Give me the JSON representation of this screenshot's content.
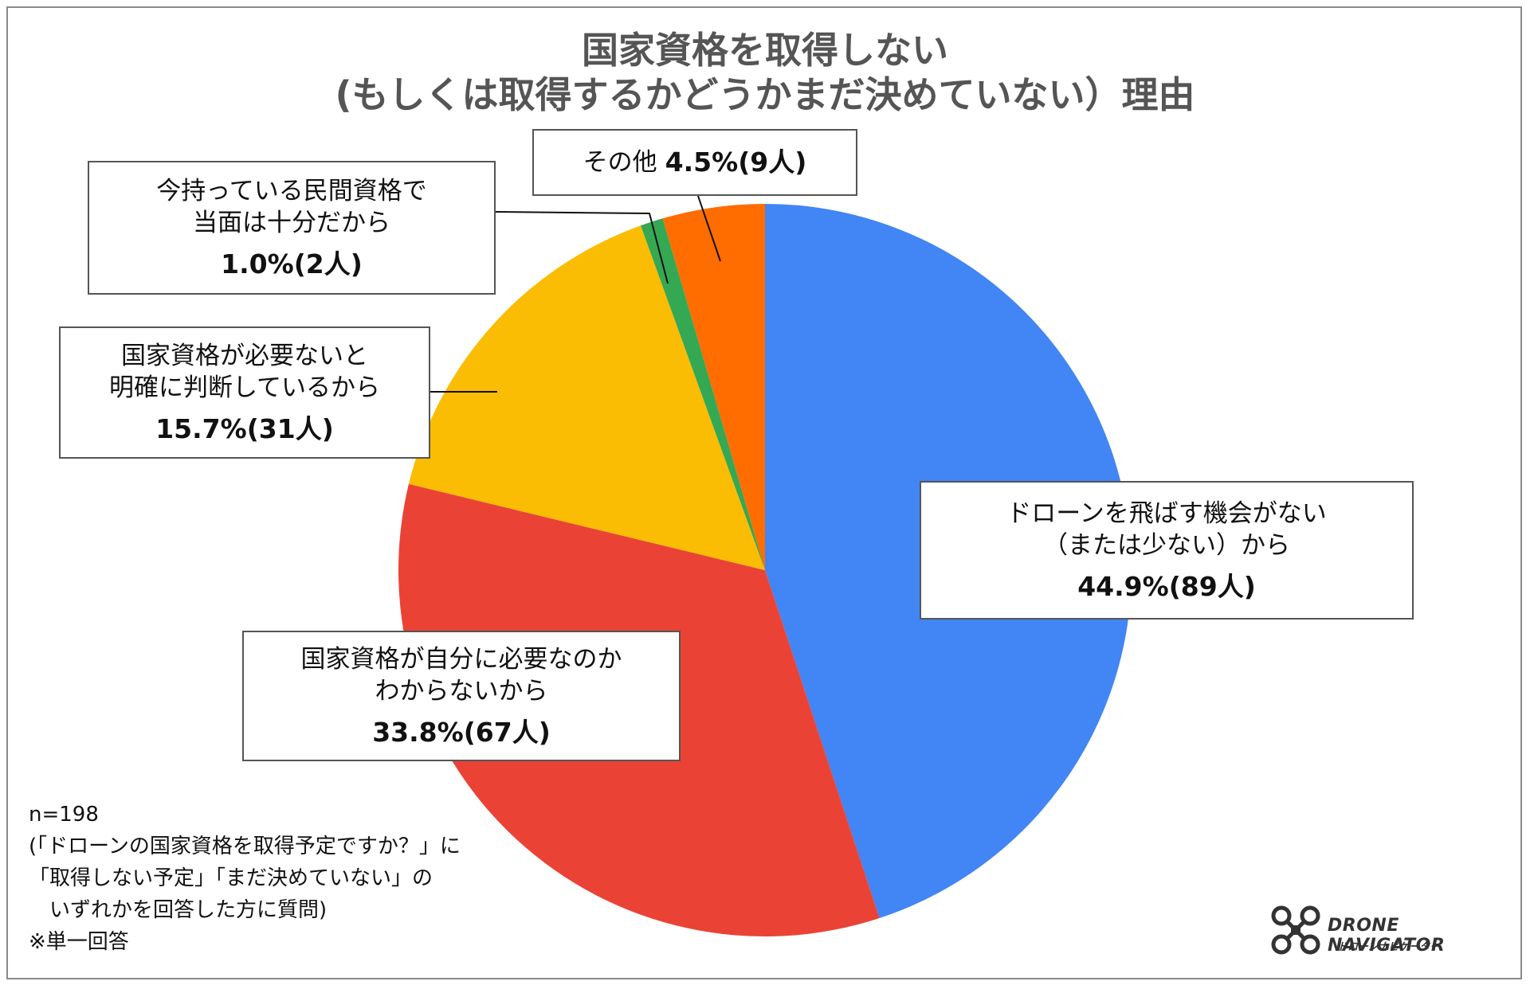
{
  "title_line1": "国家資格を取得しない",
  "title_line2": "(もしくは取得するかどうかまだ決めていない）理由",
  "chart_data": {
    "type": "pie",
    "title": "国家資格を取得しない(もしくは取得するかどうかまだ決めていない）理由",
    "start": "12 o'clock",
    "direction": "clockwise",
    "slices": [
      {
        "line1": "ドローンを飛ばす機会がない",
        "line2": "（または少ない）から",
        "value": 44.9,
        "count": 89,
        "pct_label": "44.9%(89人)",
        "color": "#4285F4"
      },
      {
        "line1": "国家資格が自分に必要なのか",
        "line2": "わからないから",
        "value": 33.8,
        "count": 67,
        "pct_label": "33.8%(67人)",
        "color": "#EA4335"
      },
      {
        "line1": "国家資格が必要ないと",
        "line2": "明確に判断しているから",
        "value": 15.7,
        "count": 31,
        "pct_label": "15.7%(31人)",
        "color": "#FBBC04"
      },
      {
        "line1": "今持っている民間資格で",
        "line2": "当面は十分だから",
        "value": 1.0,
        "count": 2,
        "pct_label": "1.0%(2人)",
        "color": "#34A853"
      },
      {
        "line1": "その他",
        "line2": "",
        "value": 4.5,
        "count": 9,
        "pct_label": "4.5%(9人)",
        "color": "#FF6D01"
      }
    ]
  },
  "notes": [
    "n=198",
    "(「ドローンの国家資格を取得予定ですか？」に",
    "「取得しない予定」「まだ決めていない」の",
    "　いずれかを回答した方に質問)",
    "※単一回答"
  ],
  "logo": {
    "name": "DRONE NAVIGATOR",
    "sub": "ドローンナビゲーター",
    "icon": "drone-icon"
  }
}
